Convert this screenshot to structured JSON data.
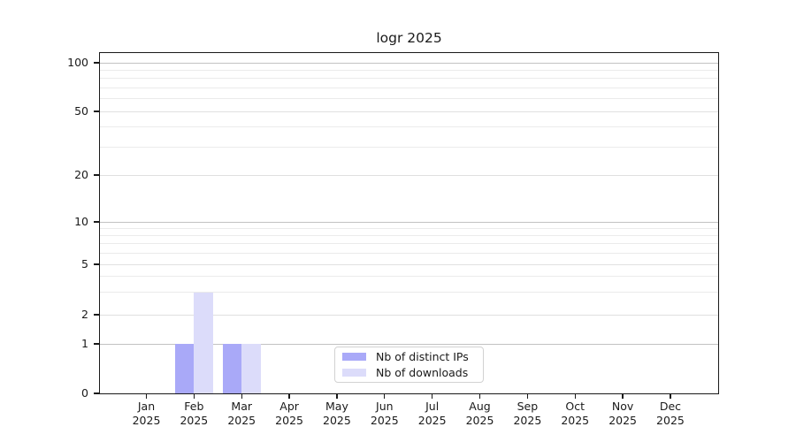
{
  "chart_data": {
    "type": "bar",
    "title": "logr 2025",
    "year": "2025",
    "months": [
      "Jan",
      "Feb",
      "Mar",
      "Apr",
      "May",
      "Jun",
      "Jul",
      "Aug",
      "Sep",
      "Oct",
      "Nov",
      "Dec"
    ],
    "series": [
      {
        "name": "Nb of distinct IPs",
        "color": "#a9a9f8",
        "values": [
          0,
          1,
          1,
          0,
          0,
          0,
          0,
          0,
          0,
          0,
          0,
          0
        ]
      },
      {
        "name": "Nb of downloads",
        "color": "#dcdcfa",
        "values": [
          0,
          3,
          1,
          0,
          0,
          0,
          0,
          0,
          0,
          0,
          0,
          0
        ]
      }
    ],
    "xlabel": "",
    "ylabel": "",
    "yscale": "symlog",
    "ylim": [
      0,
      115
    ],
    "yticks": [
      0,
      1,
      2,
      5,
      10,
      20,
      50,
      100
    ],
    "decade_gridlines": [
      1,
      10,
      100
    ],
    "labeled_minor_gridlines": [
      2,
      5,
      20,
      50
    ],
    "minor_gridlines": [
      3,
      4,
      6,
      7,
      8,
      9,
      30,
      40,
      60,
      70,
      80,
      90
    ],
    "grid": true,
    "legend_position": "lower-center-inside"
  },
  "colors": {
    "bar_distinct_ips": "#a9a9f8",
    "bar_downloads": "#dcdcfa",
    "spine": "#1a1a1a",
    "grid_decade": "#c2c2c2",
    "grid_minor": "#ebebeb",
    "background": "#ffffff",
    "text": "#1a1a1a",
    "legend_border": "#d2d2d2"
  }
}
